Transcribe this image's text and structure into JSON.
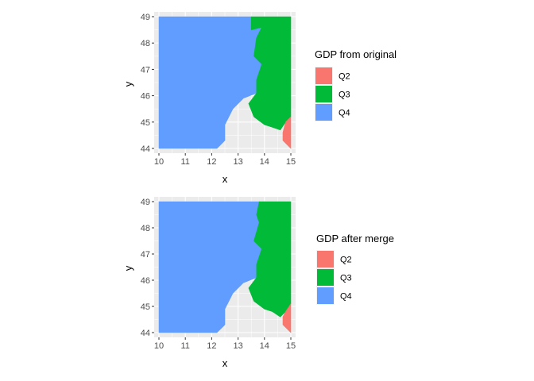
{
  "chart_data": [
    {
      "type": "heatmap",
      "title": "",
      "xlabel": "x",
      "ylabel": "y",
      "xlim": [
        10,
        15
      ],
      "ylim": [
        44,
        49
      ],
      "x_ticks": [
        "10",
        "11",
        "12",
        "13",
        "14",
        "15"
      ],
      "y_ticks": [
        "44",
        "45",
        "46",
        "47",
        "48",
        "49"
      ],
      "grid": true,
      "legend": {
        "title": "GDP from original",
        "position": "right",
        "entries": [
          {
            "label": "Q2",
            "color": "#F8766D"
          },
          {
            "label": "Q3",
            "color": "#00BA38"
          },
          {
            "label": "Q4",
            "color": "#619CFF"
          }
        ]
      },
      "regions": {
        "Q4": [
          [
            10,
            49
          ],
          [
            13.5,
            49
          ],
          [
            13.5,
            48.5
          ],
          [
            13.9,
            48.6
          ],
          [
            13.7,
            48.2
          ],
          [
            13.6,
            47.5
          ],
          [
            13.9,
            47.2
          ],
          [
            13.7,
            46.6
          ],
          [
            13.7,
            46.1
          ],
          [
            13.2,
            45.9
          ],
          [
            12.8,
            45.5
          ],
          [
            12.5,
            44.9
          ],
          [
            12.5,
            44.3
          ],
          [
            12.3,
            44.1
          ],
          [
            12.2,
            44
          ],
          [
            10,
            44
          ]
        ],
        "Q3": [
          [
            13.5,
            49
          ],
          [
            15,
            49
          ],
          [
            15,
            45.2
          ],
          [
            14.8,
            45
          ],
          [
            14.6,
            44.7
          ],
          [
            14.3,
            44.8
          ],
          [
            14.0,
            44.9
          ],
          [
            13.6,
            45.2
          ],
          [
            13.4,
            45.7
          ],
          [
            13.7,
            46.1
          ],
          [
            13.7,
            46.6
          ],
          [
            13.9,
            47.2
          ],
          [
            13.6,
            47.5
          ],
          [
            13.7,
            48.2
          ],
          [
            13.9,
            48.6
          ],
          [
            13.5,
            48.5
          ]
        ],
        "Q2": [
          [
            14.7,
            44.3
          ],
          [
            14.7,
            44.6
          ],
          [
            14.8,
            45
          ],
          [
            15,
            45.2
          ],
          [
            15,
            44
          ]
        ]
      }
    },
    {
      "type": "heatmap",
      "title": "",
      "xlabel": "x",
      "ylabel": "y",
      "xlim": [
        10,
        15
      ],
      "ylim": [
        44,
        49
      ],
      "x_ticks": [
        "10",
        "11",
        "12",
        "13",
        "14",
        "15"
      ],
      "y_ticks": [
        "44",
        "45",
        "46",
        "47",
        "48",
        "49"
      ],
      "grid": true,
      "legend": {
        "title": "GDP after merge",
        "position": "right",
        "entries": [
          {
            "label": "Q2",
            "color": "#F8766D"
          },
          {
            "label": "Q3",
            "color": "#00BA38"
          },
          {
            "label": "Q4",
            "color": "#619CFF"
          }
        ]
      },
      "regions": {
        "Q4": [
          [
            10,
            49
          ],
          [
            13.8,
            49
          ],
          [
            13.7,
            48.5
          ],
          [
            13.8,
            48.2
          ],
          [
            13.6,
            47.5
          ],
          [
            13.9,
            47.2
          ],
          [
            13.7,
            46.6
          ],
          [
            13.7,
            46.1
          ],
          [
            13.2,
            45.9
          ],
          [
            12.8,
            45.5
          ],
          [
            12.5,
            44.9
          ],
          [
            12.5,
            44.3
          ],
          [
            12.3,
            44.1
          ],
          [
            12.2,
            44
          ],
          [
            10,
            44
          ]
        ],
        "Q3": [
          [
            13.8,
            49
          ],
          [
            15,
            49
          ],
          [
            15,
            45.1
          ],
          [
            14.8,
            44.8
          ],
          [
            14.6,
            44.6
          ],
          [
            14.3,
            44.8
          ],
          [
            14.0,
            44.9
          ],
          [
            13.6,
            45.2
          ],
          [
            13.4,
            45.7
          ],
          [
            13.7,
            46.1
          ],
          [
            13.7,
            46.6
          ],
          [
            13.9,
            47.2
          ],
          [
            13.6,
            47.5
          ],
          [
            13.8,
            48.2
          ],
          [
            13.7,
            48.5
          ]
        ],
        "Q2": [
          [
            14.7,
            44.3
          ],
          [
            14.7,
            44.6
          ],
          [
            14.8,
            44.8
          ],
          [
            15,
            45.1
          ],
          [
            15,
            44
          ]
        ]
      }
    }
  ]
}
